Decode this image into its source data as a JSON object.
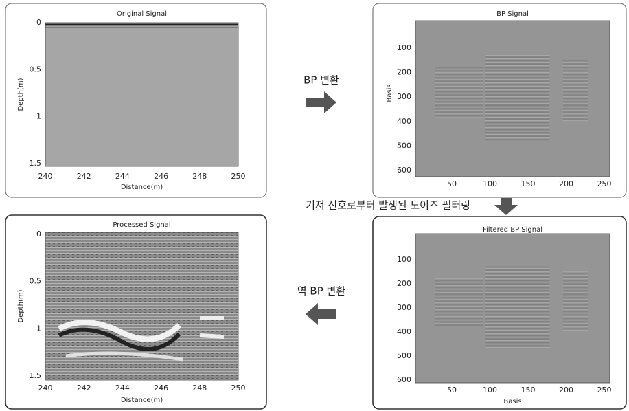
{
  "panels": [
    {
      "title": "Original Signal",
      "x_label": "Distance(m)",
      "y_label": "Depth(m)",
      "x_ticks": [
        240,
        242,
        244,
        246,
        248,
        250
      ],
      "y_ticks": [
        0,
        0.5,
        1,
        1.5
      ]
    },
    {
      "title": "BP Signal",
      "y_label": "Basis",
      "x_ticks": [
        50,
        100,
        150,
        200,
        250
      ],
      "y_ticks": [
        100,
        200,
        300,
        400,
        500,
        600
      ]
    },
    {
      "title": "Processed Signal",
      "x_label": "Distance(m)",
      "y_label": "Depth(m)",
      "x_ticks": [
        240,
        242,
        244,
        246,
        248,
        250
      ],
      "y_ticks": [
        0,
        0.5,
        1,
        1.5
      ]
    },
    {
      "title": "Filtered BP Signal",
      "x_label": "Basis",
      "x_ticks": [
        50,
        100,
        150,
        200,
        250
      ],
      "y_ticks": [
        100,
        200,
        300,
        400,
        500,
        600
      ]
    }
  ],
  "arrows": [
    {
      "label": "BP 변환"
    },
    {
      "label": "기저 신호로부터 발생된 노이즈 필터링"
    },
    {
      "label": "역 BP 변환"
    }
  ]
}
